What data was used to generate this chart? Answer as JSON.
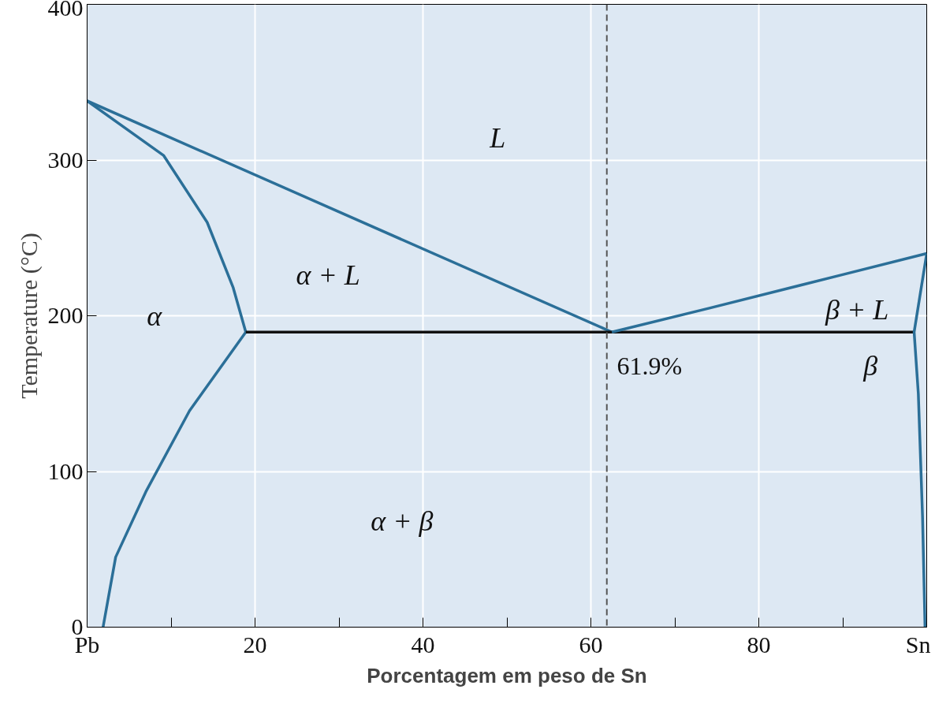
{
  "chart_data": {
    "type": "line",
    "xlabel": "Porcentagem em peso de Sn",
    "ylabel": "Temperature (°C)",
    "xlim": [
      0,
      100
    ],
    "ylim": [
      0,
      400
    ],
    "xticks": [
      {
        "value": 0,
        "label": "Pb"
      },
      {
        "value": 10,
        "label": null
      },
      20,
      {
        "value": 30,
        "label": null
      },
      40,
      {
        "value": 50,
        "label": null
      },
      60,
      {
        "value": 70,
        "label": null
      },
      80,
      {
        "value": 90,
        "label": null
      },
      {
        "value": 100,
        "label": "Sn"
      }
    ],
    "yticks": [
      0,
      100,
      200,
      300,
      400
    ],
    "grid": true,
    "marker": "none",
    "line_style": "solid",
    "series": [
      {
        "color": "#2b6f98",
        "x": [
          0,
          62.5
        ],
        "values": [
          338,
          189.5
        ]
      },
      {
        "color": "#2b6f98",
        "x": [
          0,
          9.1,
          14.3,
          17.4,
          18.9
        ],
        "values": [
          338,
          303,
          260,
          218,
          189.5
        ]
      },
      {
        "color": "#2b6f98",
        "x": [
          18.9,
          12.2,
          7,
          3.4,
          1.9
        ],
        "values": [
          189.5,
          139,
          87,
          45,
          0
        ]
      },
      {
        "color": "#111111",
        "x": [
          18.9,
          98.5
        ],
        "values": [
          189.5,
          189.5
        ]
      },
      {
        "color": "#2b6f98",
        "x": [
          62.5,
          74.2,
          89.7,
          100
        ],
        "values": [
          189.5,
          205,
          226,
          240
        ]
      },
      {
        "color": "#2b6f98",
        "x": [
          100,
          98.5,
          99,
          99.5,
          99.8
        ],
        "values": [
          240,
          189.5,
          150,
          71,
          0
        ]
      }
    ],
    "ref_lines": [
      {
        "axis": "x",
        "value": 61.9,
        "label": "61.9%",
        "color": "#555555",
        "line_style": "dashed"
      }
    ],
    "annotations": [
      "L",
      "α + L",
      "α",
      "α + β",
      "β + L",
      "β"
    ]
  }
}
